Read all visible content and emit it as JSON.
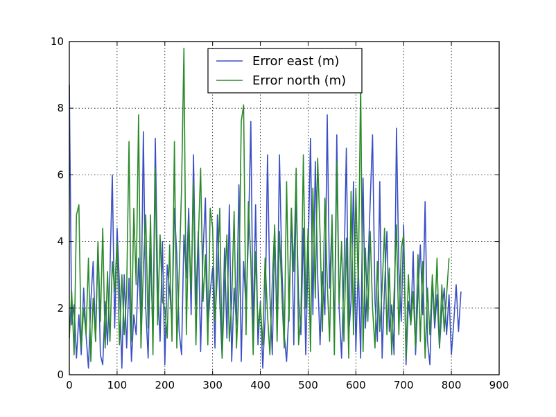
{
  "chart_data": {
    "type": "line",
    "title": "",
    "xlabel": "",
    "ylabel": "",
    "xlim": [
      0,
      900
    ],
    "ylim": [
      0,
      10
    ],
    "x_ticks": [
      0,
      100,
      200,
      300,
      400,
      500,
      600,
      700,
      800,
      900
    ],
    "y_ticks": [
      0,
      2,
      4,
      6,
      8,
      10
    ],
    "grid": true,
    "legend_position": "top-center",
    "series": [
      {
        "name": "Error east (m)",
        "color": "#3b4fc4",
        "x_start": 0,
        "x_step": 5,
        "values": [
          8.7,
          1.5,
          2.1,
          0.5,
          1.8,
          0.6,
          2.6,
          1.2,
          0.2,
          2.2,
          3.4,
          1.0,
          3.9,
          0.6,
          0.3,
          2.2,
          0.9,
          3.1,
          6.0,
          1.4,
          4.4,
          2.7,
          0.2,
          3.0,
          0.8,
          2.9,
          0.4,
          1.8,
          1.2,
          3.5,
          1.5,
          7.3,
          2.0,
          0.5,
          3.8,
          1.1,
          7.1,
          2.8,
          1.0,
          4.0,
          0.3,
          3.3,
          2.5,
          1.6,
          5.0,
          3.6,
          1.3,
          0.6,
          4.2,
          2.9,
          5.0,
          1.8,
          6.6,
          2.1,
          4.3,
          0.7,
          3.7,
          5.3,
          1.4,
          2.5,
          3.2,
          0.8,
          4.8,
          2.2,
          0.5,
          3.8,
          1.1,
          5.1,
          0.4,
          2.6,
          1.5,
          5.7,
          0.4,
          3.4,
          2.0,
          4.1,
          7.6,
          1.2,
          5.1,
          0.9,
          2.2,
          0.2,
          1.7,
          6.6,
          2.4,
          0.6,
          4.3,
          1.4,
          6.6,
          3.2,
          1.2,
          0.4,
          2.0,
          5.0,
          0.9,
          5.5,
          2.3,
          1.2,
          4.4,
          0.6,
          3.6,
          7.1,
          1.8,
          6.4,
          3.0,
          0.9,
          3.1,
          1.8,
          7.8,
          2.6,
          4.6,
          1.1,
          7.2,
          2.0,
          0.5,
          3.0,
          6.8,
          1.2,
          2.2,
          5.8,
          0.7,
          3.3,
          0.5,
          5.9,
          1.4,
          3.1,
          5.2,
          7.2,
          2.2,
          1.0,
          5.8,
          0.5,
          2.6,
          4.3,
          1.3,
          2.1,
          0.6,
          7.4,
          3.2,
          1.6,
          4.5,
          0.3,
          2.2,
          1.5,
          3.7,
          0.6,
          2.4,
          3.9,
          1.8,
          5.2,
          1.0,
          0.3,
          2.8,
          1.4,
          2.4,
          0.8,
          1.9,
          2.6,
          1.2,
          2.4,
          0.6,
          1.6,
          2.7,
          1.3,
          2.5
        ]
      },
      {
        "name": "Error north (m)",
        "color": "#2a8a2a",
        "x_start": 0,
        "x_step": 5,
        "values": [
          1.1,
          2.5,
          0.6,
          4.8,
          5.1,
          0.8,
          2.0,
          1.2,
          3.5,
          0.4,
          2.3,
          1.0,
          4.0,
          1.6,
          4.4,
          0.8,
          3.1,
          1.0,
          3.4,
          2.5,
          4.0,
          0.9,
          3.0,
          1.2,
          2.5,
          7.0,
          1.0,
          5.0,
          2.7,
          7.8,
          0.8,
          3.2,
          4.8,
          1.4,
          4.8,
          0.6,
          6.2,
          1.5,
          4.2,
          2.2,
          2.0,
          1.1,
          3.9,
          1.0,
          7.0,
          0.8,
          3.0,
          5.6,
          9.8,
          1.2,
          4.6,
          2.5,
          5.8,
          0.9,
          4.0,
          6.2,
          2.2,
          3.6,
          0.9,
          5.0,
          4.4,
          1.6,
          3.0,
          5.0,
          0.5,
          2.6,
          4.2,
          1.0,
          2.2,
          4.9,
          0.8,
          2.5,
          7.6,
          8.1,
          1.2,
          5.2,
          3.4,
          0.6,
          3.7,
          1.4,
          2.1,
          0.9,
          3.5,
          1.8,
          0.6,
          2.8,
          4.5,
          1.0,
          4.3,
          2.4,
          0.8,
          5.8,
          1.6,
          5.0,
          3.1,
          6.2,
          0.9,
          1.8,
          6.6,
          2.0,
          4.4,
          0.7,
          5.6,
          2.3,
          6.5,
          4.2,
          1.3,
          5.3,
          2.8,
          1.0,
          4.8,
          0.6,
          6.4,
          2.1,
          4.0,
          1.0,
          4.1,
          0.5,
          5.5,
          1.2,
          5.6,
          2.6,
          8.8,
          0.7,
          3.8,
          1.6,
          4.3,
          2.0,
          0.8,
          3.4,
          1.3,
          2.6,
          4.4,
          1.2,
          3.2,
          0.6,
          2.4,
          4.5,
          1.2,
          3.8,
          4.2,
          0.5,
          3.0,
          1.5,
          2.5,
          0.8,
          3.6,
          1.0,
          3.4,
          0.5,
          2.6,
          1.2,
          3.0,
          1.6,
          3.5,
          0.8,
          2.7,
          1.3,
          2.4,
          3.5
        ]
      }
    ]
  }
}
